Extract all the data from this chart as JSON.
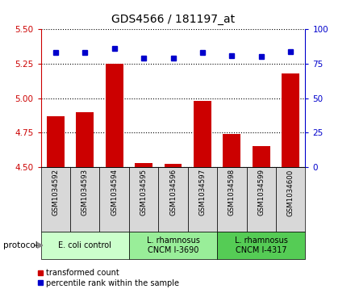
{
  "title": "GDS4566 / 181197_at",
  "samples": [
    "GSM1034592",
    "GSM1034593",
    "GSM1034594",
    "GSM1034595",
    "GSM1034596",
    "GSM1034597",
    "GSM1034598",
    "GSM1034599",
    "GSM1034600"
  ],
  "red_values": [
    4.87,
    4.9,
    5.25,
    4.53,
    4.52,
    4.98,
    4.74,
    4.65,
    5.18
  ],
  "blue_values": [
    83,
    83,
    86,
    79,
    79,
    83,
    81,
    80,
    84
  ],
  "ylim_left": [
    4.5,
    5.5
  ],
  "ylim_right": [
    0,
    100
  ],
  "yticks_left": [
    4.5,
    4.75,
    5.0,
    5.25,
    5.5
  ],
  "yticks_right": [
    0,
    25,
    50,
    75,
    100
  ],
  "groups": [
    {
      "label": "E. coli control",
      "indices": [
        0,
        1,
        2
      ],
      "color": "#ccffcc"
    },
    {
      "label": "L. rhamnosus\nCNCM I-3690",
      "indices": [
        3,
        4,
        5
      ],
      "color": "#99ee99"
    },
    {
      "label": "L. rhamnosus\nCNCM I-4317",
      "indices": [
        6,
        7,
        8
      ],
      "color": "#55cc55"
    }
  ],
  "protocol_label": "protocol",
  "legend_red": "transformed count",
  "legend_blue": "percentile rank within the sample",
  "red_color": "#cc0000",
  "blue_color": "#0000cc",
  "bar_width": 0.6,
  "sample_bg": "#d8d8d8",
  "fig_bg": "#ffffff"
}
